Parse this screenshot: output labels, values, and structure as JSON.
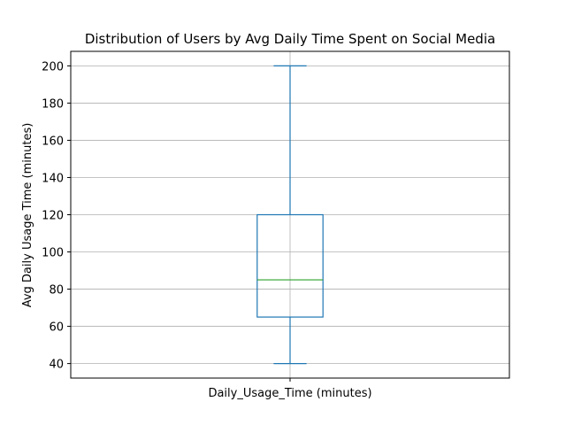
{
  "chart_data": {
    "type": "box",
    "title": "Distribution of Users by Avg Daily Time Spent on Social Media",
    "xlabel": "",
    "ylabel": "Avg Daily Usage Time (minutes)",
    "categories": [
      "Daily_Usage_Time (minutes)"
    ],
    "boxes": [
      {
        "label": "Daily_Usage_Time (minutes)",
        "whisker_low": 40,
        "q1": 65,
        "median": 85,
        "q3": 120,
        "whisker_high": 200
      }
    ],
    "ylim": [
      32.2,
      207.8
    ],
    "yticks": [
      40,
      60,
      80,
      100,
      120,
      140,
      160,
      180,
      200
    ],
    "grid": true,
    "colors": {
      "box": "#1f77b4",
      "median": "#2ca02c",
      "grid": "#b0b0b0"
    }
  }
}
